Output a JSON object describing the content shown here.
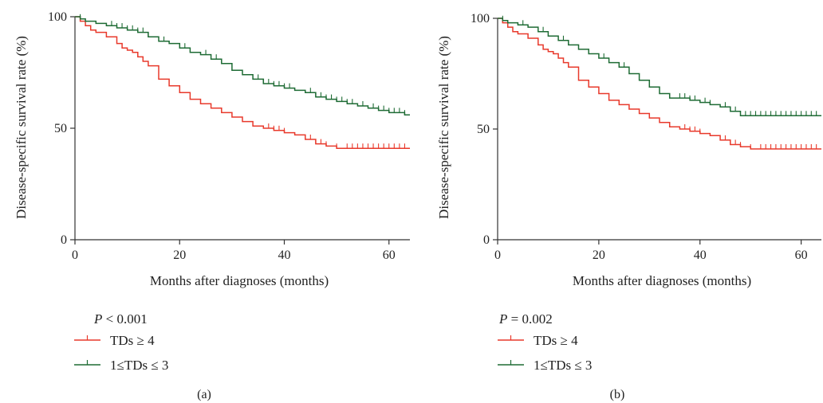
{
  "chart_data": [
    {
      "type": "line",
      "panel_label": "(a)",
      "xlabel": "Months after diagnoses (months)",
      "ylabel": "Disease-specific survival rate (%)",
      "xlim": [
        0,
        64
      ],
      "ylim": [
        0,
        100
      ],
      "xticks": [
        0,
        20,
        40,
        60
      ],
      "yticks": [
        0,
        50,
        100
      ],
      "grid": false,
      "legend_position": "bottom-left",
      "p_label": "P",
      "p_value": "< 0.001",
      "series": [
        {
          "name": "TDs ≥ 4",
          "color": "#e8392b",
          "x": [
            0,
            1,
            2,
            3,
            4,
            6,
            8,
            9,
            10,
            11,
            12,
            13,
            14,
            16,
            18,
            20,
            22,
            24,
            26,
            28,
            30,
            32,
            34,
            36,
            38,
            40,
            42,
            44,
            46,
            48,
            50,
            52,
            54,
            56,
            58,
            60,
            62,
            64
          ],
          "y": [
            100,
            98,
            96,
            94,
            93,
            91,
            88,
            86,
            85,
            84,
            82,
            80,
            78,
            72,
            69,
            66,
            63,
            61,
            59,
            57,
            55,
            53,
            51,
            50,
            49,
            48,
            47,
            45,
            43,
            42,
            41,
            41,
            41,
            41,
            41,
            41,
            41,
            41
          ],
          "censor_x": [
            1,
            37,
            38,
            39,
            40,
            45,
            46,
            47,
            48,
            50,
            52,
            53,
            54,
            55,
            56,
            57,
            58,
            59,
            60,
            61,
            62,
            63
          ]
        },
        {
          "name": "1≤TDs ≤ 3",
          "color": "#1e6b34",
          "x": [
            0,
            1,
            2,
            4,
            6,
            8,
            10,
            12,
            14,
            16,
            18,
            20,
            22,
            24,
            26,
            28,
            30,
            32,
            34,
            36,
            38,
            40,
            42,
            44,
            46,
            48,
            50,
            52,
            54,
            56,
            58,
            60,
            62,
            63,
            64
          ],
          "y": [
            100,
            99,
            98,
            97,
            96,
            95,
            94,
            93,
            91,
            89,
            88,
            86,
            84,
            83,
            81,
            79,
            76,
            74,
            72,
            70,
            69,
            68,
            67,
            66,
            64,
            63,
            62,
            61,
            60,
            59,
            58,
            57,
            57,
            56,
            56
          ],
          "censor_x": [
            1,
            7,
            8,
            9,
            10,
            11,
            12,
            13,
            14,
            17,
            21,
            25,
            27,
            35,
            36,
            37,
            38,
            39,
            40,
            41,
            45,
            46,
            47,
            48,
            49,
            50,
            51,
            52,
            53,
            55,
            57,
            58,
            59,
            60,
            61,
            62,
            63
          ]
        }
      ]
    },
    {
      "type": "line",
      "panel_label": "(b)",
      "xlabel": "Months after diagnoses (months)",
      "ylabel": "Disease-specific survival rate (%)",
      "xlim": [
        0,
        64
      ],
      "ylim": [
        0,
        100
      ],
      "xticks": [
        0,
        20,
        40,
        60
      ],
      "yticks": [
        0,
        50,
        100
      ],
      "grid": false,
      "legend_position": "bottom-left",
      "p_label": "P",
      "p_value": "= 0.002",
      "series": [
        {
          "name": "TDs ≥ 4",
          "color": "#e8392b",
          "x": [
            0,
            1,
            2,
            3,
            4,
            6,
            8,
            9,
            10,
            11,
            12,
            13,
            14,
            16,
            18,
            20,
            22,
            24,
            26,
            28,
            30,
            32,
            34,
            36,
            38,
            40,
            42,
            44,
            46,
            48,
            50,
            52,
            54,
            56,
            58,
            60,
            62,
            64
          ],
          "y": [
            100,
            98,
            96,
            94,
            93,
            91,
            88,
            86,
            85,
            84,
            82,
            80,
            78,
            72,
            69,
            66,
            63,
            61,
            59,
            57,
            55,
            53,
            51,
            50,
            49,
            48,
            47,
            45,
            43,
            42,
            41,
            41,
            41,
            41,
            41,
            41,
            41,
            41
          ],
          "censor_x": [
            1,
            37,
            38,
            39,
            40,
            45,
            46,
            47,
            48,
            50,
            52,
            53,
            54,
            55,
            56,
            57,
            58,
            59,
            60,
            61,
            62,
            63
          ]
        },
        {
          "name": "1≤TDs ≤ 3",
          "color": "#1e6b34",
          "x": [
            0,
            1,
            2,
            4,
            6,
            8,
            10,
            12,
            14,
            16,
            18,
            20,
            22,
            24,
            26,
            28,
            30,
            32,
            34,
            36,
            38,
            40,
            42,
            44,
            46,
            48,
            50,
            52,
            54,
            56,
            58,
            60,
            62,
            64
          ],
          "y": [
            100,
            99,
            98,
            97,
            96,
            94,
            92,
            90,
            88,
            86,
            84,
            82,
            80,
            78,
            75,
            72,
            69,
            66,
            64,
            64,
            63,
            62,
            61,
            60,
            58,
            56,
            56,
            56,
            56,
            56,
            56,
            56,
            56,
            56
          ],
          "censor_x": [
            1,
            5,
            9,
            13,
            21,
            25,
            34,
            36,
            37,
            38,
            39,
            41,
            42,
            45,
            47,
            49,
            50,
            51,
            52,
            53,
            54,
            55,
            56,
            57,
            58,
            59,
            60,
            61,
            62,
            63
          ]
        }
      ]
    }
  ]
}
